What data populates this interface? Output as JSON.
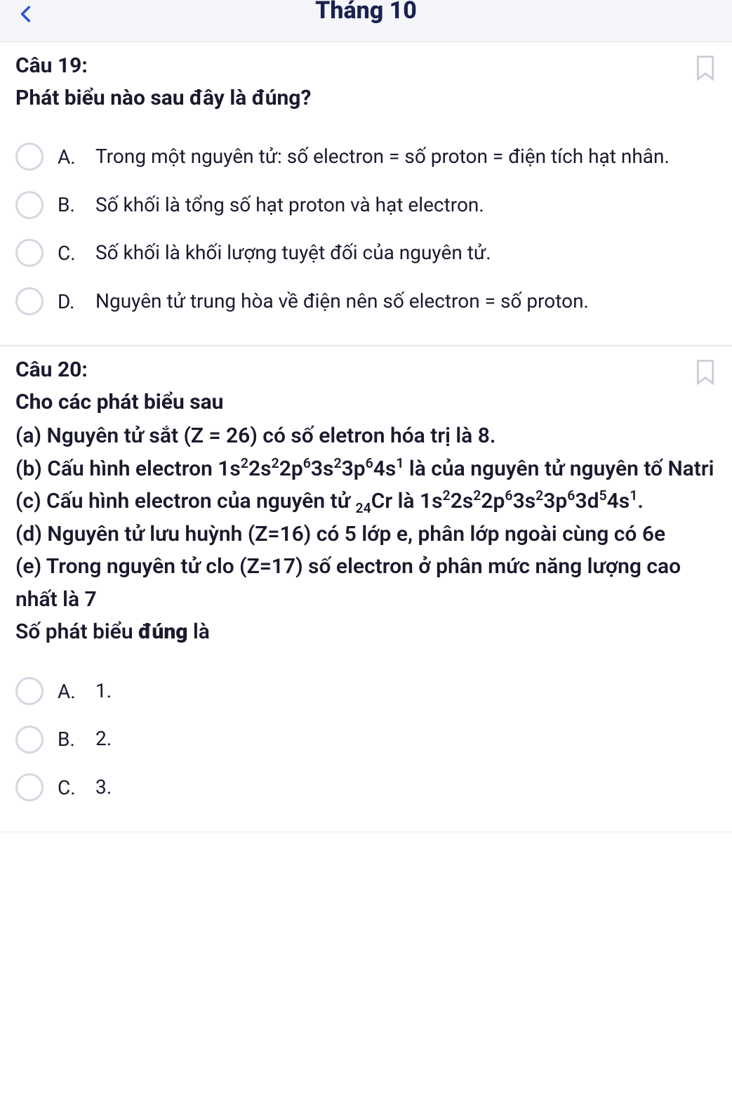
{
  "navbar": {
    "title": "Tháng 10",
    "back_icon_color": "#2a52d6"
  },
  "colors": {
    "text": "#1a1a2e",
    "nav_title": "#1a2250",
    "radio_border": "#d4d7e2",
    "divider": "#e6e8ef",
    "bookmark_stroke": "#c9cbd4",
    "nav_bg": "#f5f6fa"
  },
  "questions": [
    {
      "label": "Câu 19:",
      "title": "Phát biểu nào sau đây là đúng?",
      "body_lines": [],
      "options": [
        {
          "letter": "A.",
          "text": "Trong một nguyên tử: số electron = số proton = điện tích hạt nhân."
        },
        {
          "letter": "B.",
          "text": "Số khối là tổng số hạt proton và hạt electron."
        },
        {
          "letter": "C.",
          "text": "Số khối là khối lượng tuyệt đối của nguyên tử."
        },
        {
          "letter": "D.",
          "text": "Nguyên tử trung hòa về điện nên số electron = số proton."
        }
      ]
    },
    {
      "label": "Câu 20:",
      "title": "Cho các phát biểu sau",
      "body_lines": [
        "(a) Nguyên tử sắt (Z = 26) có số eletron hóa trị là 8.",
        "(b) Cấu hình electron 1s<sup>2</sup>2s<sup>2</sup>2p<sup>6</sup>3s<sup>2</sup>3p<sup>6</sup>4s<sup>1</sup> là của nguyên tử nguyên tố Natri",
        "(c) Cấu hình electron của nguyên tử <sub>24</sub>Cr là 1s<sup>2</sup>2s<sup>2</sup>2p<sup>6</sup>3s<sup>2</sup>3p<sup>6</sup>3d<sup>5</sup>4s<sup>1</sup>.",
        "(d) Nguyên tử lưu huỳnh (Z=16) có 5 lớp e, phân lớp ngoài cùng có 6e",
        "(e) Trong nguyên tử clo (Z=17) số electron ở phân mức năng lượng cao nhất là 7",
        "Số phát biểu <b>đúng</b> là"
      ],
      "options": [
        {
          "letter": "A.",
          "text": "1."
        },
        {
          "letter": "B.",
          "text": "2."
        },
        {
          "letter": "C.",
          "text": "3."
        }
      ]
    }
  ]
}
